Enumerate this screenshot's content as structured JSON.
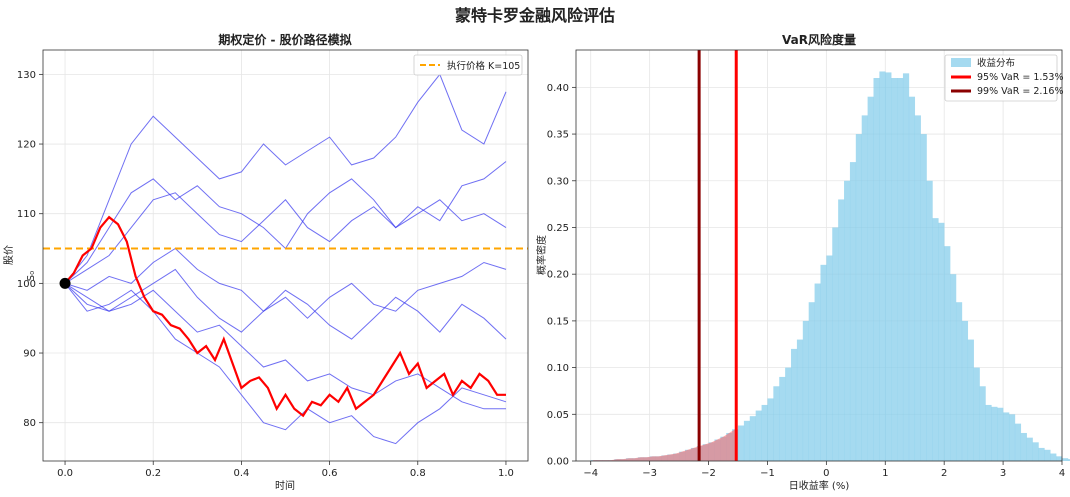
{
  "figure": {
    "title": "蒙特卡罗金融风险评估"
  },
  "chart_data": [
    {
      "type": "line",
      "title": "期权定价 - 股价路径模拟",
      "xlabel": "时间",
      "ylabel": "股价",
      "xlim": [
        -0.05,
        1.05
      ],
      "ylim": [
        74.5,
        133.5
      ],
      "xticks": [
        0.0,
        0.2,
        0.4,
        0.6,
        0.8,
        1.0
      ],
      "xtick_labels": [
        "0.0",
        "0.2",
        "0.4",
        "0.6",
        "0.8",
        "1.0"
      ],
      "yticks": [
        80,
        90,
        100,
        110,
        120,
        130
      ],
      "ytick_labels": [
        "80",
        "90",
        "100",
        "110",
        "120",
        "130"
      ],
      "grid": true,
      "legend": {
        "position": "top-right",
        "entries": [
          "执行价格 K=105"
        ]
      },
      "annotation": {
        "text": "S₀",
        "x": 0.0,
        "y": 100
      },
      "start_point": {
        "x": 0.0,
        "y": 100
      },
      "strike": {
        "label": "执行价格 K=105",
        "value": 105,
        "color": "#ffa500"
      },
      "paths_color": "#3333ee",
      "highlight_color": "#ff0000",
      "paths": [
        {
          "x": [
            0,
            0.05,
            0.1,
            0.15,
            0.2,
            0.25,
            0.3,
            0.35,
            0.4,
            0.45,
            0.5,
            0.55,
            0.6,
            0.65,
            0.7,
            0.75,
            0.8,
            0.85,
            0.9,
            0.95,
            1.0
          ],
          "y": [
            100,
            104,
            112,
            120,
            124,
            121,
            118,
            115,
            116,
            120,
            117,
            119,
            121,
            117,
            118,
            121,
            126,
            130,
            122,
            120,
            127.5
          ]
        },
        {
          "x": [
            0,
            0.05,
            0.1,
            0.15,
            0.2,
            0.25,
            0.3,
            0.35,
            0.4,
            0.45,
            0.5,
            0.55,
            0.6,
            0.65,
            0.7,
            0.75,
            0.8,
            0.85,
            0.9,
            0.95,
            1.0
          ],
          "y": [
            100,
            103,
            108,
            113,
            115,
            112,
            114,
            111,
            110,
            108,
            105,
            110,
            113,
            115,
            112,
            108,
            111,
            109,
            114,
            115,
            117.5
          ]
        },
        {
          "x": [
            0,
            0.05,
            0.1,
            0.15,
            0.2,
            0.25,
            0.3,
            0.35,
            0.4,
            0.45,
            0.5,
            0.55,
            0.6,
            0.65,
            0.7,
            0.75,
            0.8,
            0.85,
            0.9,
            0.95,
            1.0
          ],
          "y": [
            100,
            102,
            104,
            108,
            112,
            113,
            110,
            107,
            106,
            109,
            112,
            108,
            106,
            109,
            111,
            108,
            110,
            112,
            109,
            110,
            108
          ]
        },
        {
          "x": [
            0,
            0.05,
            0.1,
            0.15,
            0.2,
            0.25,
            0.3,
            0.35,
            0.4,
            0.45,
            0.5,
            0.55,
            0.6,
            0.65,
            0.7,
            0.75,
            0.8,
            0.85,
            0.9,
            0.95,
            1.0
          ],
          "y": [
            100,
            99,
            101,
            100,
            103,
            105,
            102,
            100,
            99,
            96,
            98,
            95,
            98,
            100,
            97,
            96,
            99,
            100,
            101,
            103,
            102
          ]
        },
        {
          "x": [
            0,
            0.05,
            0.1,
            0.15,
            0.2,
            0.25,
            0.3,
            0.35,
            0.4,
            0.45,
            0.5,
            0.55,
            0.6,
            0.65,
            0.7,
            0.75,
            0.8,
            0.85,
            0.9,
            0.95,
            1.0
          ],
          "y": [
            100,
            97,
            96,
            98,
            100,
            102,
            98,
            95,
            93,
            96,
            99,
            97,
            94,
            92,
            95,
            98,
            96,
            93,
            97,
            95,
            92
          ]
        },
        {
          "x": [
            0,
            0.05,
            0.1,
            0.15,
            0.2,
            0.25,
            0.3,
            0.35,
            0.4,
            0.45,
            0.5,
            0.55,
            0.6,
            0.65,
            0.7,
            0.75,
            0.8,
            0.85,
            0.9,
            0.95,
            1.0
          ],
          "y": [
            100,
            98,
            96,
            97,
            99,
            96,
            93,
            94,
            91,
            88,
            89,
            86,
            87,
            85,
            84,
            86,
            87,
            85,
            83,
            82,
            82
          ]
        },
        {
          "x": [
            0,
            0.05,
            0.1,
            0.15,
            0.2,
            0.25,
            0.3,
            0.35,
            0.4,
            0.45,
            0.5,
            0.55,
            0.6,
            0.65,
            0.7,
            0.75,
            0.8,
            0.85,
            0.9,
            0.95,
            1.0
          ],
          "y": [
            100,
            96,
            97,
            99,
            96,
            92,
            90,
            88,
            84,
            80,
            79,
            82,
            80,
            81,
            78,
            77,
            80,
            82,
            85,
            84,
            83
          ]
        }
      ],
      "highlight_path": {
        "x": [
          0,
          0.02,
          0.04,
          0.06,
          0.08,
          0.1,
          0.12,
          0.14,
          0.16,
          0.18,
          0.2,
          0.22,
          0.24,
          0.26,
          0.28,
          0.3,
          0.32,
          0.34,
          0.36,
          0.38,
          0.4,
          0.42,
          0.44,
          0.46,
          0.48,
          0.5,
          0.52,
          0.54,
          0.56,
          0.58,
          0.6,
          0.62,
          0.64,
          0.66,
          0.68,
          0.7,
          0.72,
          0.74,
          0.76,
          0.78,
          0.8,
          0.82,
          0.84,
          0.86,
          0.88,
          0.9,
          0.92,
          0.94,
          0.96,
          0.98,
          1.0
        ],
        "y": [
          100,
          101.5,
          104,
          105,
          108,
          109.5,
          108.5,
          106,
          101,
          98,
          96,
          95.5,
          94,
          93.5,
          92,
          90,
          91,
          89,
          92,
          88.5,
          85,
          86,
          86.5,
          85,
          82,
          84,
          82,
          81,
          83,
          82.5,
          84,
          83,
          85,
          82,
          83,
          84,
          86,
          88,
          90,
          87,
          88.5,
          85,
          86,
          87,
          84,
          86,
          85,
          87,
          86,
          84,
          84
        ]
      }
    },
    {
      "type": "bar",
      "title": "VaR风险度量",
      "xlabel": "日收益率 (%)",
      "ylabel": "概率密度",
      "xlim": [
        -4.25,
        4.0
      ],
      "ylim": [
        0,
        0.44
      ],
      "xticks": [
        -4,
        -3,
        -2,
        -1,
        0,
        1,
        2,
        3,
        4
      ],
      "xtick_labels": [
        "−4",
        "−3",
        "−2",
        "−1",
        "0",
        "1",
        "2",
        "3",
        "4"
      ],
      "yticks": [
        0.0,
        0.05,
        0.1,
        0.15,
        0.2,
        0.25,
        0.3,
        0.35,
        0.4
      ],
      "ytick_labels": [
        "0.00",
        "0.05",
        "0.10",
        "0.15",
        "0.20",
        "0.25",
        "0.30",
        "0.35",
        "0.40"
      ],
      "grid": true,
      "legend": {
        "position": "top-right",
        "entries": [
          "收益分布",
          "95% VaR = 1.53%",
          "99% VaR = 2.16%"
        ]
      },
      "histogram": {
        "label": "收益分布",
        "color": "#87ceeb",
        "bin_start": -4.0,
        "bin_width": 0.1,
        "values": [
          0.001,
          0.001,
          0.001,
          0.001,
          0.002,
          0.002,
          0.003,
          0.003,
          0.004,
          0.004,
          0.005,
          0.005,
          0.006,
          0.007,
          0.008,
          0.01,
          0.012,
          0.014,
          0.016,
          0.018,
          0.02,
          0.023,
          0.026,
          0.03,
          0.034,
          0.038,
          0.043,
          0.048,
          0.054,
          0.06,
          0.067,
          0.08,
          0.09,
          0.1,
          0.12,
          0.13,
          0.15,
          0.17,
          0.19,
          0.21,
          0.22,
          0.25,
          0.28,
          0.3,
          0.32,
          0.35,
          0.37,
          0.39,
          0.41,
          0.417,
          0.416,
          0.41,
          0.41,
          0.415,
          0.39,
          0.37,
          0.35,
          0.3,
          0.26,
          0.255,
          0.23,
          0.2,
          0.17,
          0.15,
          0.13,
          0.1,
          0.08,
          0.06,
          0.058,
          0.057,
          0.052,
          0.05,
          0.04,
          0.03,
          0.025,
          0.02,
          0.014,
          0.012,
          0.008,
          0.005,
          0.003,
          0.002
        ]
      },
      "var_lines": [
        {
          "label": "95% VaR = 1.53%",
          "value": -1.53,
          "color": "#ff0000"
        },
        {
          "label": "99% VaR = 2.16%",
          "value": -2.16,
          "color": "#8b0000"
        }
      ],
      "tail_fill": {
        "color": "#ff6666",
        "from": -4.0,
        "to": -1.53
      }
    }
  ]
}
